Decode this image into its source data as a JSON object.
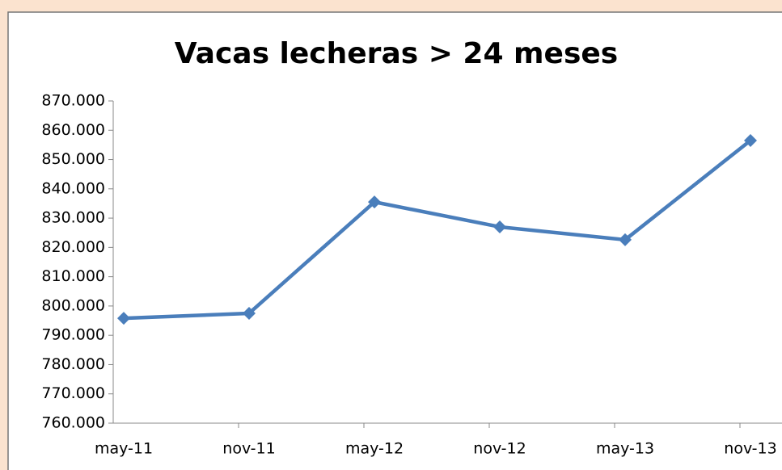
{
  "chart_data": {
    "type": "line",
    "title": "Vacas lecheras > 24 meses",
    "categories": [
      "may-11",
      "nov-11",
      "may-12",
      "nov-12",
      "may-13",
      "nov-13"
    ],
    "series": [
      {
        "name": "Vacas lecheras > 24 meses",
        "color": "#4a7ebb",
        "values": [
          795800,
          797500,
          835500,
          827000,
          822600,
          856500
        ]
      }
    ],
    "ylim": [
      760000,
      870000
    ],
    "yticks": [
      {
        "value": 760000,
        "label": "760.000"
      },
      {
        "value": 770000,
        "label": "770.000"
      },
      {
        "value": 780000,
        "label": "780.000"
      },
      {
        "value": 790000,
        "label": "790.000"
      },
      {
        "value": 800000,
        "label": "800.000"
      },
      {
        "value": 810000,
        "label": "810.000"
      },
      {
        "value": 820000,
        "label": "820.000"
      },
      {
        "value": 830000,
        "label": "830.000"
      },
      {
        "value": 840000,
        "label": "840.000"
      },
      {
        "value": 850000,
        "label": "850.000"
      },
      {
        "value": 860000,
        "label": "860.000"
      },
      {
        "value": 870000,
        "label": "870.000"
      }
    ],
    "grid": false
  }
}
